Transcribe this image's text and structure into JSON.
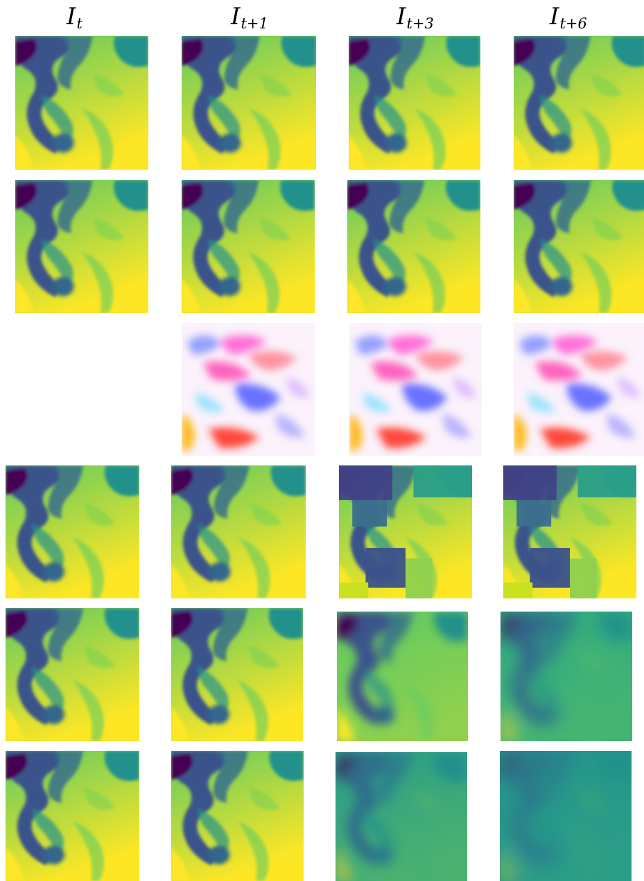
{
  "columns": [
    {
      "base": "I",
      "sub": "t"
    },
    {
      "base": "I",
      "sub": "t+1"
    },
    {
      "base": "I",
      "sub": "t+3"
    },
    {
      "base": "I",
      "sub": "t+6"
    }
  ],
  "rows": [
    {
      "cells": [
        "field",
        "field",
        "field",
        "field"
      ]
    },
    {
      "cells": [
        "field",
        "field",
        "field",
        "field"
      ]
    },
    {
      "cells": [
        "empty",
        "flow",
        "flow",
        "flow"
      ]
    },
    {
      "cells": [
        "field",
        "field",
        "blocky",
        "blocky"
      ]
    },
    {
      "cells": [
        "field",
        "field",
        "blurred",
        "blurred-strong"
      ]
    },
    {
      "cells": [
        "field",
        "field",
        "blurred-teal",
        "blurred-teal-strong"
      ]
    }
  ],
  "colors": {
    "colormap": "viridis",
    "dark": "#440154",
    "mid": "#31688e",
    "teal": "#21918c",
    "green": "#5ec962",
    "yellow": "#fde725"
  }
}
